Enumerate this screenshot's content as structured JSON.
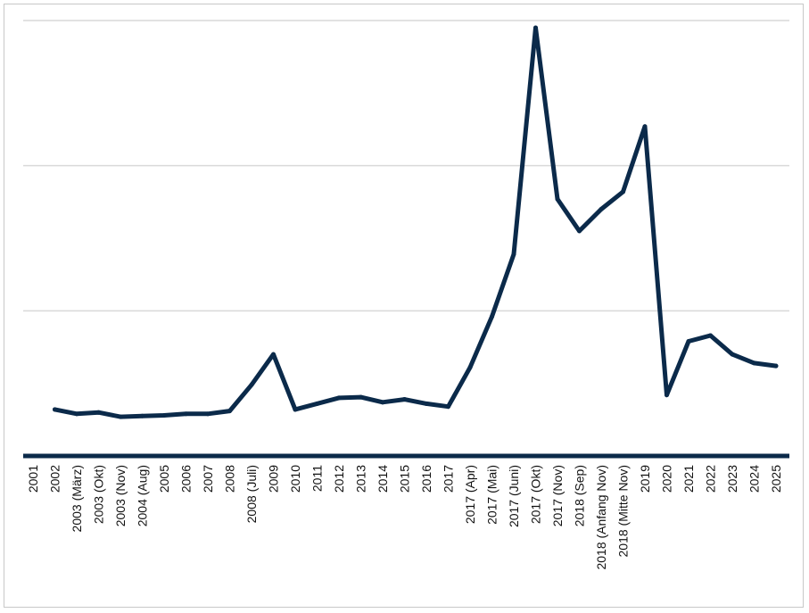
{
  "chart_data": {
    "type": "line",
    "title": "",
    "xlabel": "",
    "ylabel": "",
    "grid": true,
    "legend": "none",
    "y_axis_labels_shown": false,
    "ylim": [
      0,
      300
    ],
    "line_color": "#0b2a4a",
    "grid_color": "#d9d9d9",
    "axis_color": "#0b2a4a",
    "x": [
      "2001",
      "2002",
      "2003 (März)",
      "2003 (Okt)",
      "2003 (Nov)",
      "2004 (Aug)",
      "2005",
      "2006",
      "2007",
      "2008",
      "2008 (Juli)",
      "2009",
      "2010",
      "2011",
      "2012",
      "2013",
      "2014",
      "2015",
      "2016",
      "2017",
      "2017 (Apr)",
      "2017 (Mai)",
      "2017 (Juni)",
      "2017 (Okt)",
      "2017 (Nov)",
      "2018 (Sep)",
      "2018 (Anfang Nov)",
      "2018 (Mitte Nov)",
      "2019",
      "2020",
      "2021",
      "2022",
      "2023",
      "2024",
      "2025"
    ],
    "series": [
      {
        "values": [
          null,
          32,
          29,
          30,
          27,
          27.5,
          28,
          29,
          29,
          31,
          49,
          70,
          32,
          36,
          40,
          40.5,
          37,
          39,
          36,
          34,
          61,
          96,
          139,
          295,
          177,
          155,
          170,
          182,
          227,
          42,
          79,
          83,
          70,
          64,
          62
        ]
      }
    ]
  }
}
